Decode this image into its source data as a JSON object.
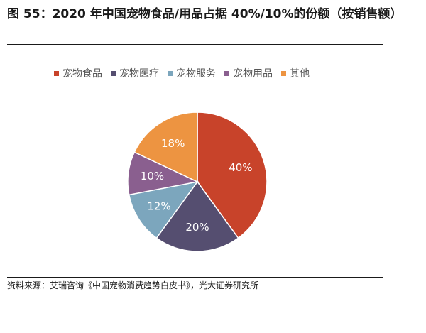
{
  "figure": {
    "title": "图 55：2020 年中国宠物食品/用品占据 40%/10%的份额（按销售额）",
    "source": "资料来源：艾瑞咨询《中国宠物消费趋势白皮书》，光大证券研究所"
  },
  "chart_data": {
    "type": "pie",
    "title": "",
    "legend_position": "top",
    "slices": [
      {
        "label": "宠物食品",
        "value": 40,
        "value_label": "40%",
        "color": "#c8432a"
      },
      {
        "label": "宠物医疗",
        "value": 20,
        "value_label": "20%",
        "color": "#554e70"
      },
      {
        "label": "宠物服务",
        "value": 12,
        "value_label": "12%",
        "color": "#7ca6bd"
      },
      {
        "label": "宠物用品",
        "value": 10,
        "value_label": "10%",
        "color": "#8a5f8f"
      },
      {
        "label": "其他",
        "value": 18,
        "value_label": "18%",
        "color": "#ed9441"
      }
    ]
  }
}
